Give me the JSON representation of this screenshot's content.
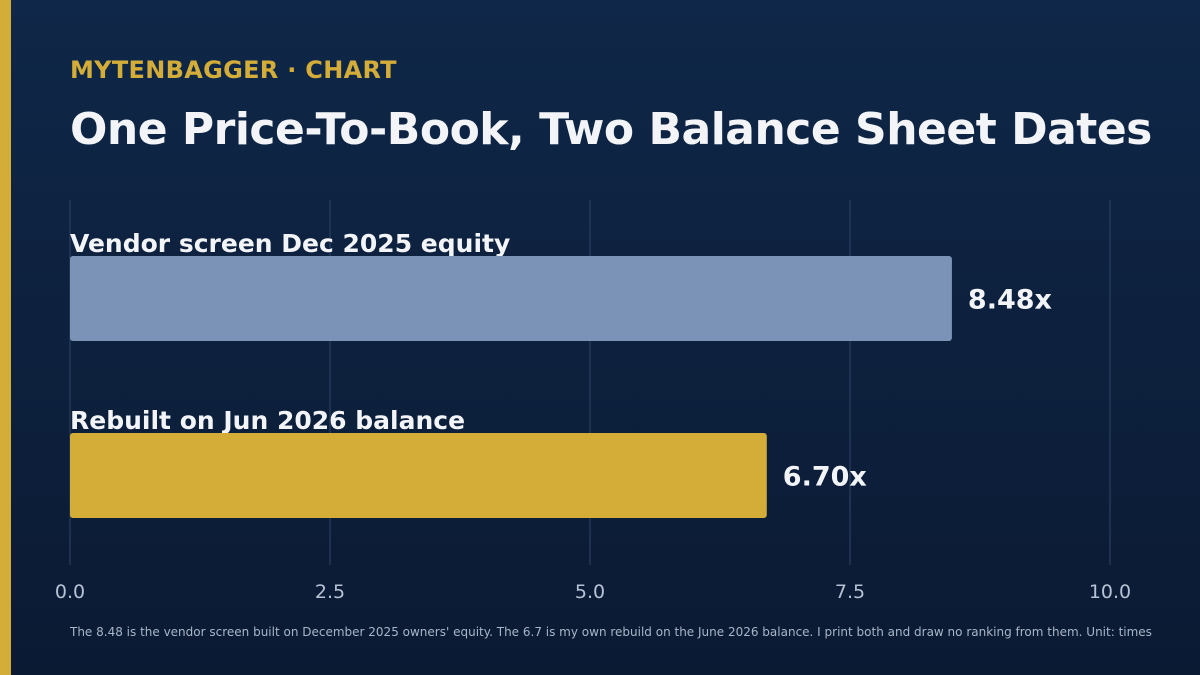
{
  "header": {
    "brand": "MYTENBAGGER · CHART",
    "title": "One Price-To-Book, Two Balance Sheet Dates"
  },
  "footnote": "The 8.48 is the vendor screen built on December 2025 owners' equity. The 6.7 is my own rebuild on the June 2026 balance. I print both and draw no ranking from them. Unit: times",
  "colors": {
    "background": "#0f2748",
    "accent": "#d3ad38",
    "series_1": "#7b93b6",
    "series_2": "#d3ad38"
  },
  "chart_data": {
    "type": "bar",
    "orientation": "horizontal",
    "title": "One Price-To-Book, Two Balance Sheet Dates",
    "categories": [
      "Vendor screen Dec 2025 equity",
      "Rebuilt on Jun 2026 balance"
    ],
    "values": [
      8.48,
      6.7
    ],
    "value_labels": [
      "8.48x",
      "6.70x"
    ],
    "bar_colors": [
      "#7b93b6",
      "#d3ad38"
    ],
    "xlim": [
      0,
      10
    ],
    "xticks": [
      0,
      2.5,
      5,
      7.5,
      10
    ],
    "xtick_labels": [
      "0.0",
      "2.5",
      "5.0",
      "7.5",
      "10.0"
    ],
    "xlabel": "",
    "ylabel": "",
    "grid": true,
    "legend": "none"
  }
}
